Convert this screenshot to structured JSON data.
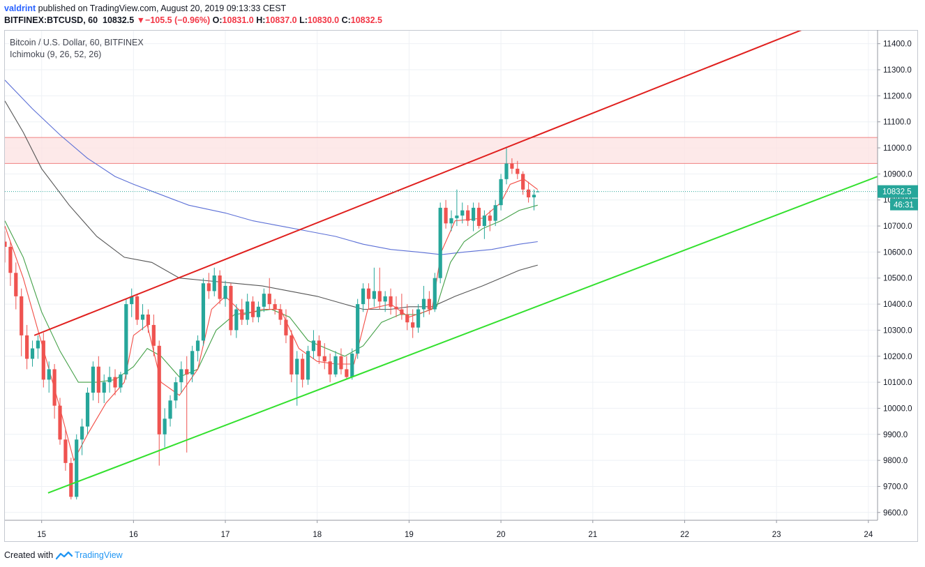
{
  "header": {
    "author": "valdrint",
    "published_text": " published on TradingView.com, August 20, 2019 09:13:33 CEST",
    "symbol_line": "BITFINEX:BTCUSD, 60",
    "last_price": "10832.5",
    "change_arrow": "▼",
    "change_text": "−105.5 (−0.96%)",
    "o_label": "O:",
    "o_value": "10831.0",
    "h_label": "H:",
    "h_value": "10837.0",
    "l_label": "L:",
    "l_value": "10830.0",
    "c_label": "C:",
    "c_value": "10832.5"
  },
  "overlay": {
    "pair_title": "Bitcoin / U.S. Dollar, 60, BITFINEX",
    "indicator": "Ichimoku (9, 26, 52, 26)"
  },
  "footer": {
    "created_with": "Created with",
    "brand": "TradingView"
  },
  "colors": {
    "up": "#26a69a",
    "down": "#ef5350",
    "upper_trendline": "#e0201e",
    "lower_trendline": "#33e02e",
    "resistance_zone_fill": "#fde3e3",
    "resistance_zone_border": "#f08080",
    "ma_red": "#f24c44",
    "ma_green": "#43a047",
    "ma_blue": "#5b6fd6",
    "ma_black": "#555555",
    "price_label_bg": "#26a69a"
  },
  "chart_data": {
    "type": "candlestick",
    "ylim": [
      9570,
      11450
    ],
    "y_ticks": [
      9600,
      9700,
      9800,
      9900,
      10000,
      10100,
      10200,
      10300,
      10400,
      10500,
      10600,
      10700,
      10800,
      10900,
      11000,
      11100,
      11200,
      11300,
      11400
    ],
    "y_tick_labels": [
      "9600.0",
      "9700.0",
      "9800.0",
      "9900.0",
      "10000.0",
      "10100.0",
      "10200.0",
      "10300.0",
      "10400.0",
      "10500.0",
      "10600.0",
      "10700.0",
      "10800.0",
      "10900.0",
      "11000.0",
      "11100.0",
      "11200.0",
      "11300.0",
      "11400.0"
    ],
    "xlim": [
      14.6,
      24.1
    ],
    "x_ticks": [
      15,
      16,
      17,
      18,
      19,
      20,
      21,
      22,
      23,
      24
    ],
    "x_tick_labels": [
      "15",
      "16",
      "17",
      "18",
      "19",
      "20",
      "21",
      "22",
      "23",
      "24"
    ],
    "grid": true,
    "last_price": 10832.5,
    "last_price_label": "10832.5",
    "countdown_label": "46:31",
    "resistance_zone": [
      10940,
      11040
    ],
    "upper_trendline": [
      [
        14.92,
        10280
      ],
      [
        23.29,
        11455
      ]
    ],
    "lower_trendline": [
      [
        15.07,
        9675
      ],
      [
        24.1,
        10890
      ]
    ],
    "candles": [
      {
        "t": 14.6,
        "o": 10640,
        "h": 10680,
        "l": 10560,
        "c": 10620
      },
      {
        "t": 14.66,
        "o": 10620,
        "h": 10640,
        "l": 10470,
        "c": 10520
      },
      {
        "t": 14.72,
        "o": 10520,
        "h": 10560,
        "l": 10380,
        "c": 10430
      },
      {
        "t": 14.78,
        "o": 10430,
        "h": 10460,
        "l": 10200,
        "c": 10280
      },
      {
        "t": 14.84,
        "o": 10280,
        "h": 10320,
        "l": 10150,
        "c": 10190
      },
      {
        "t": 14.9,
        "o": 10190,
        "h": 10260,
        "l": 10160,
        "c": 10230
      },
      {
        "t": 14.96,
        "o": 10230,
        "h": 10280,
        "l": 10190,
        "c": 10260
      },
      {
        "t": 15.02,
        "o": 10260,
        "h": 10290,
        "l": 10080,
        "c": 10110
      },
      {
        "t": 15.08,
        "o": 10110,
        "h": 10180,
        "l": 10060,
        "c": 10150
      },
      {
        "t": 15.14,
        "o": 10150,
        "h": 10170,
        "l": 9960,
        "c": 10010
      },
      {
        "t": 15.2,
        "o": 10010,
        "h": 10040,
        "l": 9860,
        "c": 9880
      },
      {
        "t": 15.26,
        "o": 9880,
        "h": 9920,
        "l": 9760,
        "c": 9790
      },
      {
        "t": 15.32,
        "o": 9790,
        "h": 9810,
        "l": 9650,
        "c": 9660
      },
      {
        "t": 15.38,
        "o": 9660,
        "h": 9900,
        "l": 9650,
        "c": 9880
      },
      {
        "t": 15.44,
        "o": 9880,
        "h": 9960,
        "l": 9820,
        "c": 9930
      },
      {
        "t": 15.5,
        "o": 9930,
        "h": 10080,
        "l": 9900,
        "c": 10060
      },
      {
        "t": 15.56,
        "o": 10060,
        "h": 10180,
        "l": 10030,
        "c": 10160
      },
      {
        "t": 15.62,
        "o": 10160,
        "h": 10200,
        "l": 10020,
        "c": 10060
      },
      {
        "t": 15.68,
        "o": 10060,
        "h": 10130,
        "l": 10020,
        "c": 10100
      },
      {
        "t": 15.74,
        "o": 10100,
        "h": 10160,
        "l": 10060,
        "c": 10120
      },
      {
        "t": 15.8,
        "o": 10120,
        "h": 10150,
        "l": 10050,
        "c": 10080
      },
      {
        "t": 15.86,
        "o": 10080,
        "h": 10140,
        "l": 10060,
        "c": 10130
      },
      {
        "t": 15.92,
        "o": 10130,
        "h": 10420,
        "l": 10110,
        "c": 10400
      },
      {
        "t": 15.98,
        "o": 10400,
        "h": 10460,
        "l": 10350,
        "c": 10430
      },
      {
        "t": 16.04,
        "o": 10430,
        "h": 10440,
        "l": 10320,
        "c": 10340
      },
      {
        "t": 16.1,
        "o": 10340,
        "h": 10400,
        "l": 10300,
        "c": 10360
      },
      {
        "t": 16.16,
        "o": 10360,
        "h": 10380,
        "l": 10290,
        "c": 10320
      },
      {
        "t": 16.22,
        "o": 10320,
        "h": 10360,
        "l": 10200,
        "c": 10240
      },
      {
        "t": 16.28,
        "o": 10240,
        "h": 10260,
        "l": 9780,
        "c": 9900
      },
      {
        "t": 16.34,
        "o": 9900,
        "h": 10000,
        "l": 9850,
        "c": 9960
      },
      {
        "t": 16.4,
        "o": 9960,
        "h": 10050,
        "l": 9930,
        "c": 10030
      },
      {
        "t": 16.46,
        "o": 10030,
        "h": 10120,
        "l": 10000,
        "c": 10100
      },
      {
        "t": 16.52,
        "o": 10100,
        "h": 10180,
        "l": 10060,
        "c": 10150
      },
      {
        "t": 16.58,
        "o": 10150,
        "h": 10200,
        "l": 9830,
        "c": 10130
      },
      {
        "t": 16.64,
        "o": 10130,
        "h": 10240,
        "l": 10100,
        "c": 10220
      },
      {
        "t": 16.7,
        "o": 10220,
        "h": 10280,
        "l": 10180,
        "c": 10260
      },
      {
        "t": 16.76,
        "o": 10260,
        "h": 10500,
        "l": 10240,
        "c": 10480
      },
      {
        "t": 16.82,
        "o": 10480,
        "h": 10520,
        "l": 10420,
        "c": 10450
      },
      {
        "t": 16.88,
        "o": 10450,
        "h": 10540,
        "l": 10430,
        "c": 10510
      },
      {
        "t": 16.94,
        "o": 10510,
        "h": 10530,
        "l": 10400,
        "c": 10420
      },
      {
        "t": 17.0,
        "o": 10420,
        "h": 10490,
        "l": 10390,
        "c": 10470
      },
      {
        "t": 17.06,
        "o": 10470,
        "h": 10480,
        "l": 10280,
        "c": 10300
      },
      {
        "t": 17.12,
        "o": 10300,
        "h": 10400,
        "l": 10270,
        "c": 10380
      },
      {
        "t": 17.18,
        "o": 10380,
        "h": 10420,
        "l": 10320,
        "c": 10340
      },
      {
        "t": 17.24,
        "o": 10340,
        "h": 10440,
        "l": 10320,
        "c": 10410
      },
      {
        "t": 17.3,
        "o": 10410,
        "h": 10430,
        "l": 10330,
        "c": 10350
      },
      {
        "t": 17.36,
        "o": 10350,
        "h": 10410,
        "l": 10330,
        "c": 10390
      },
      {
        "t": 17.42,
        "o": 10390,
        "h": 10460,
        "l": 10370,
        "c": 10440
      },
      {
        "t": 17.48,
        "o": 10440,
        "h": 10500,
        "l": 10380,
        "c": 10400
      },
      {
        "t": 17.54,
        "o": 10400,
        "h": 10420,
        "l": 10360,
        "c": 10380
      },
      {
        "t": 17.6,
        "o": 10380,
        "h": 10400,
        "l": 10320,
        "c": 10340
      },
      {
        "t": 17.66,
        "o": 10340,
        "h": 10380,
        "l": 10250,
        "c": 10280
      },
      {
        "t": 17.72,
        "o": 10280,
        "h": 10300,
        "l": 10100,
        "c": 10130
      },
      {
        "t": 17.78,
        "o": 10130,
        "h": 10220,
        "l": 10010,
        "c": 10190
      },
      {
        "t": 17.84,
        "o": 10190,
        "h": 10210,
        "l": 10080,
        "c": 10110
      },
      {
        "t": 17.9,
        "o": 10110,
        "h": 10240,
        "l": 10090,
        "c": 10220
      },
      {
        "t": 17.96,
        "o": 10220,
        "h": 10300,
        "l": 10190,
        "c": 10260
      },
      {
        "t": 18.02,
        "o": 10260,
        "h": 10280,
        "l": 10170,
        "c": 10200
      },
      {
        "t": 18.08,
        "o": 10200,
        "h": 10250,
        "l": 10150,
        "c": 10180
      },
      {
        "t": 18.14,
        "o": 10180,
        "h": 10210,
        "l": 10100,
        "c": 10130
      },
      {
        "t": 18.2,
        "o": 10130,
        "h": 10220,
        "l": 10120,
        "c": 10200
      },
      {
        "t": 18.26,
        "o": 10200,
        "h": 10230,
        "l": 10130,
        "c": 10150
      },
      {
        "t": 18.32,
        "o": 10150,
        "h": 10200,
        "l": 10110,
        "c": 10120
      },
      {
        "t": 18.38,
        "o": 10120,
        "h": 10230,
        "l": 10110,
        "c": 10210
      },
      {
        "t": 18.44,
        "o": 10210,
        "h": 10420,
        "l": 10190,
        "c": 10400
      },
      {
        "t": 18.5,
        "o": 10400,
        "h": 10480,
        "l": 10370,
        "c": 10460
      },
      {
        "t": 18.56,
        "o": 10460,
        "h": 10480,
        "l": 10380,
        "c": 10420
      },
      {
        "t": 18.62,
        "o": 10420,
        "h": 10540,
        "l": 10390,
        "c": 10450
      },
      {
        "t": 18.68,
        "o": 10450,
        "h": 10540,
        "l": 10380,
        "c": 10410
      },
      {
        "t": 18.74,
        "o": 10410,
        "h": 10450,
        "l": 10370,
        "c": 10430
      },
      {
        "t": 18.8,
        "o": 10430,
        "h": 10460,
        "l": 10360,
        "c": 10390
      },
      {
        "t": 18.86,
        "o": 10390,
        "h": 10430,
        "l": 10350,
        "c": 10380
      },
      {
        "t": 18.92,
        "o": 10380,
        "h": 10440,
        "l": 10340,
        "c": 10360
      },
      {
        "t": 18.98,
        "o": 10360,
        "h": 10400,
        "l": 10300,
        "c": 10330
      },
      {
        "t": 19.04,
        "o": 10330,
        "h": 10380,
        "l": 10270,
        "c": 10310
      },
      {
        "t": 19.1,
        "o": 10310,
        "h": 10400,
        "l": 10290,
        "c": 10380
      },
      {
        "t": 19.16,
        "o": 10380,
        "h": 10470,
        "l": 10350,
        "c": 10420
      },
      {
        "t": 19.22,
        "o": 10420,
        "h": 10450,
        "l": 10360,
        "c": 10380
      },
      {
        "t": 19.28,
        "o": 10380,
        "h": 10520,
        "l": 10370,
        "c": 10500
      },
      {
        "t": 19.34,
        "o": 10500,
        "h": 10790,
        "l": 10480,
        "c": 10770
      },
      {
        "t": 19.4,
        "o": 10770,
        "h": 10800,
        "l": 10690,
        "c": 10710
      },
      {
        "t": 19.46,
        "o": 10710,
        "h": 10760,
        "l": 10680,
        "c": 10730
      },
      {
        "t": 19.52,
        "o": 10730,
        "h": 10840,
        "l": 10700,
        "c": 10740
      },
      {
        "t": 19.58,
        "o": 10740,
        "h": 10790,
        "l": 10710,
        "c": 10760
      },
      {
        "t": 19.64,
        "o": 10760,
        "h": 10780,
        "l": 10700,
        "c": 10720
      },
      {
        "t": 19.7,
        "o": 10720,
        "h": 10790,
        "l": 10680,
        "c": 10770
      },
      {
        "t": 19.76,
        "o": 10770,
        "h": 10790,
        "l": 10690,
        "c": 10700
      },
      {
        "t": 19.82,
        "o": 10700,
        "h": 10760,
        "l": 10650,
        "c": 10740
      },
      {
        "t": 19.88,
        "o": 10740,
        "h": 10760,
        "l": 10680,
        "c": 10720
      },
      {
        "t": 19.94,
        "o": 10720,
        "h": 10800,
        "l": 10700,
        "c": 10780
      },
      {
        "t": 20.0,
        "o": 10780,
        "h": 10900,
        "l": 10760,
        "c": 10880
      },
      {
        "t": 20.06,
        "o": 10880,
        "h": 11000,
        "l": 10860,
        "c": 10940
      },
      {
        "t": 20.12,
        "o": 10940,
        "h": 10960,
        "l": 10900,
        "c": 10920
      },
      {
        "t": 20.18,
        "o": 10920,
        "h": 10950,
        "l": 10880,
        "c": 10900
      },
      {
        "t": 20.24,
        "o": 10900,
        "h": 10910,
        "l": 10820,
        "c": 10840
      },
      {
        "t": 20.3,
        "o": 10840,
        "h": 10870,
        "l": 10790,
        "c": 10810
      },
      {
        "t": 20.36,
        "o": 10810,
        "h": 10840,
        "l": 10760,
        "c": 10820
      },
      {
        "t": 20.4,
        "o": 10831,
        "h": 10837,
        "l": 10830,
        "c": 10832.5
      }
    ],
    "ma_red": [
      [
        14.6,
        10700
      ],
      [
        14.8,
        10500
      ],
      [
        15.0,
        10250
      ],
      [
        15.2,
        10000
      ],
      [
        15.35,
        9800
      ],
      [
        15.5,
        9900
      ],
      [
        15.7,
        10020
      ],
      [
        15.9,
        10100
      ],
      [
        16.0,
        10280
      ],
      [
        16.15,
        10320
      ],
      [
        16.3,
        10100
      ],
      [
        16.5,
        10050
      ],
      [
        16.7,
        10150
      ],
      [
        16.85,
        10380
      ],
      [
        17.0,
        10430
      ],
      [
        17.2,
        10360
      ],
      [
        17.4,
        10380
      ],
      [
        17.6,
        10380
      ],
      [
        17.8,
        10230
      ],
      [
        18.0,
        10180
      ],
      [
        18.2,
        10170
      ],
      [
        18.4,
        10170
      ],
      [
        18.55,
        10380
      ],
      [
        18.8,
        10400
      ],
      [
        19.0,
        10350
      ],
      [
        19.25,
        10380
      ],
      [
        19.35,
        10600
      ],
      [
        19.5,
        10720
      ],
      [
        19.8,
        10730
      ],
      [
        20.0,
        10790
      ],
      [
        20.1,
        10860
      ],
      [
        20.25,
        10880
      ],
      [
        20.4,
        10840
      ]
    ],
    "ma_green": [
      [
        14.6,
        10720
      ],
      [
        14.8,
        10580
      ],
      [
        15.0,
        10370
      ],
      [
        15.2,
        10220
      ],
      [
        15.4,
        10100
      ],
      [
        15.6,
        10100
      ],
      [
        15.8,
        10110
      ],
      [
        16.0,
        10160
      ],
      [
        16.15,
        10230
      ],
      [
        16.3,
        10200
      ],
      [
        16.5,
        10120
      ],
      [
        16.7,
        10150
      ],
      [
        16.9,
        10300
      ],
      [
        17.1,
        10360
      ],
      [
        17.3,
        10370
      ],
      [
        17.5,
        10380
      ],
      [
        17.7,
        10350
      ],
      [
        17.9,
        10260
      ],
      [
        18.1,
        10230
      ],
      [
        18.3,
        10200
      ],
      [
        18.5,
        10240
      ],
      [
        18.7,
        10330
      ],
      [
        18.9,
        10360
      ],
      [
        19.1,
        10360
      ],
      [
        19.3,
        10390
      ],
      [
        19.45,
        10560
      ],
      [
        19.6,
        10640
      ],
      [
        19.8,
        10690
      ],
      [
        20.0,
        10720
      ],
      [
        20.2,
        10760
      ],
      [
        20.4,
        10780
      ]
    ],
    "ma_blue": [
      [
        14.6,
        11260
      ],
      [
        14.9,
        11150
      ],
      [
        15.2,
        11050
      ],
      [
        15.5,
        10960
      ],
      [
        15.8,
        10890
      ],
      [
        16.0,
        10860
      ],
      [
        16.3,
        10820
      ],
      [
        16.6,
        10780
      ],
      [
        17.0,
        10750
      ],
      [
        17.3,
        10720
      ],
      [
        17.6,
        10700
      ],
      [
        17.9,
        10680
      ],
      [
        18.2,
        10660
      ],
      [
        18.5,
        10630
      ],
      [
        18.8,
        10610
      ],
      [
        19.1,
        10600
      ],
      [
        19.35,
        10590
      ],
      [
        19.6,
        10600
      ],
      [
        19.9,
        10610
      ],
      [
        20.2,
        10630
      ],
      [
        20.4,
        10640
      ]
    ],
    "ma_black": [
      [
        14.6,
        11180
      ],
      [
        14.8,
        11060
      ],
      [
        15.0,
        10920
      ],
      [
        15.3,
        10780
      ],
      [
        15.6,
        10660
      ],
      [
        15.9,
        10580
      ],
      [
        16.2,
        10560
      ],
      [
        16.5,
        10500
      ],
      [
        16.8,
        10490
      ],
      [
        17.1,
        10480
      ],
      [
        17.4,
        10470
      ],
      [
        17.7,
        10450
      ],
      [
        18.0,
        10430
      ],
      [
        18.3,
        10400
      ],
      [
        18.5,
        10380
      ],
      [
        18.8,
        10380
      ],
      [
        19.0,
        10390
      ],
      [
        19.25,
        10390
      ],
      [
        19.5,
        10430
      ],
      [
        19.8,
        10470
      ],
      [
        20.0,
        10500
      ],
      [
        20.2,
        10530
      ],
      [
        20.4,
        10550
      ]
    ]
  }
}
